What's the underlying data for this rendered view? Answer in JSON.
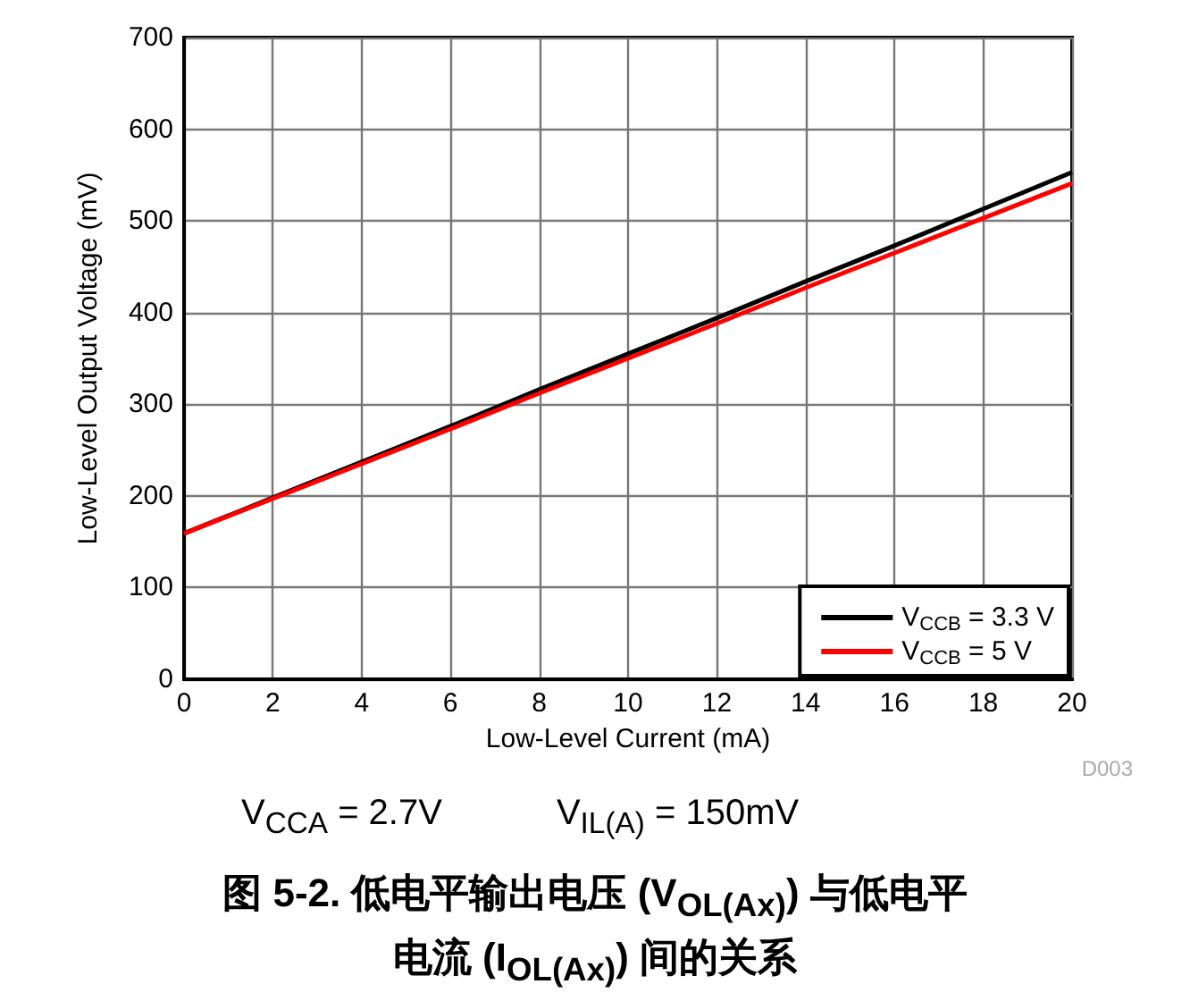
{
  "chart_data": {
    "type": "line",
    "title": "图 5-2. 低电平输出电压 (V$_{OL(Ax)}$) 与低电平电流 (I$_{OL(Ax)}$) 间的关系",
    "xlabel": "Low-Level Current (mA)",
    "ylabel": "Low-Level Output Voltage (mV)",
    "annotations": [
      "D003",
      "V$_{CCA}$ = 2.7V",
      "V$_{IL(A)}$ = 150mV"
    ],
    "x": [
      0,
      2,
      4,
      6,
      8,
      10,
      12,
      14,
      16,
      18,
      20
    ],
    "series": [
      {
        "name": "V$_{CCB}$ = 3.3 V",
        "color": "#000000",
        "values": [
          159,
          198,
          237,
          276,
          316,
          355,
          394,
          434,
          473,
          513,
          553
        ]
      },
      {
        "name": "V$_{CCB}$ = 5 V",
        "color": "#ff0000",
        "values": [
          159,
          197,
          235,
          273,
          312,
          350,
          388,
          427,
          465,
          503,
          541
        ]
      }
    ],
    "xlim": [
      0,
      20
    ],
    "xticks": [
      0,
      2,
      4,
      6,
      8,
      10,
      12,
      14,
      16,
      18,
      20
    ],
    "ylim": [
      0,
      700
    ],
    "yticks": [
      0,
      100,
      200,
      300,
      400,
      500,
      600,
      700
    ],
    "grid": true,
    "legend": "bottom right",
    "marker": "none",
    "line_style": "solid"
  }
}
